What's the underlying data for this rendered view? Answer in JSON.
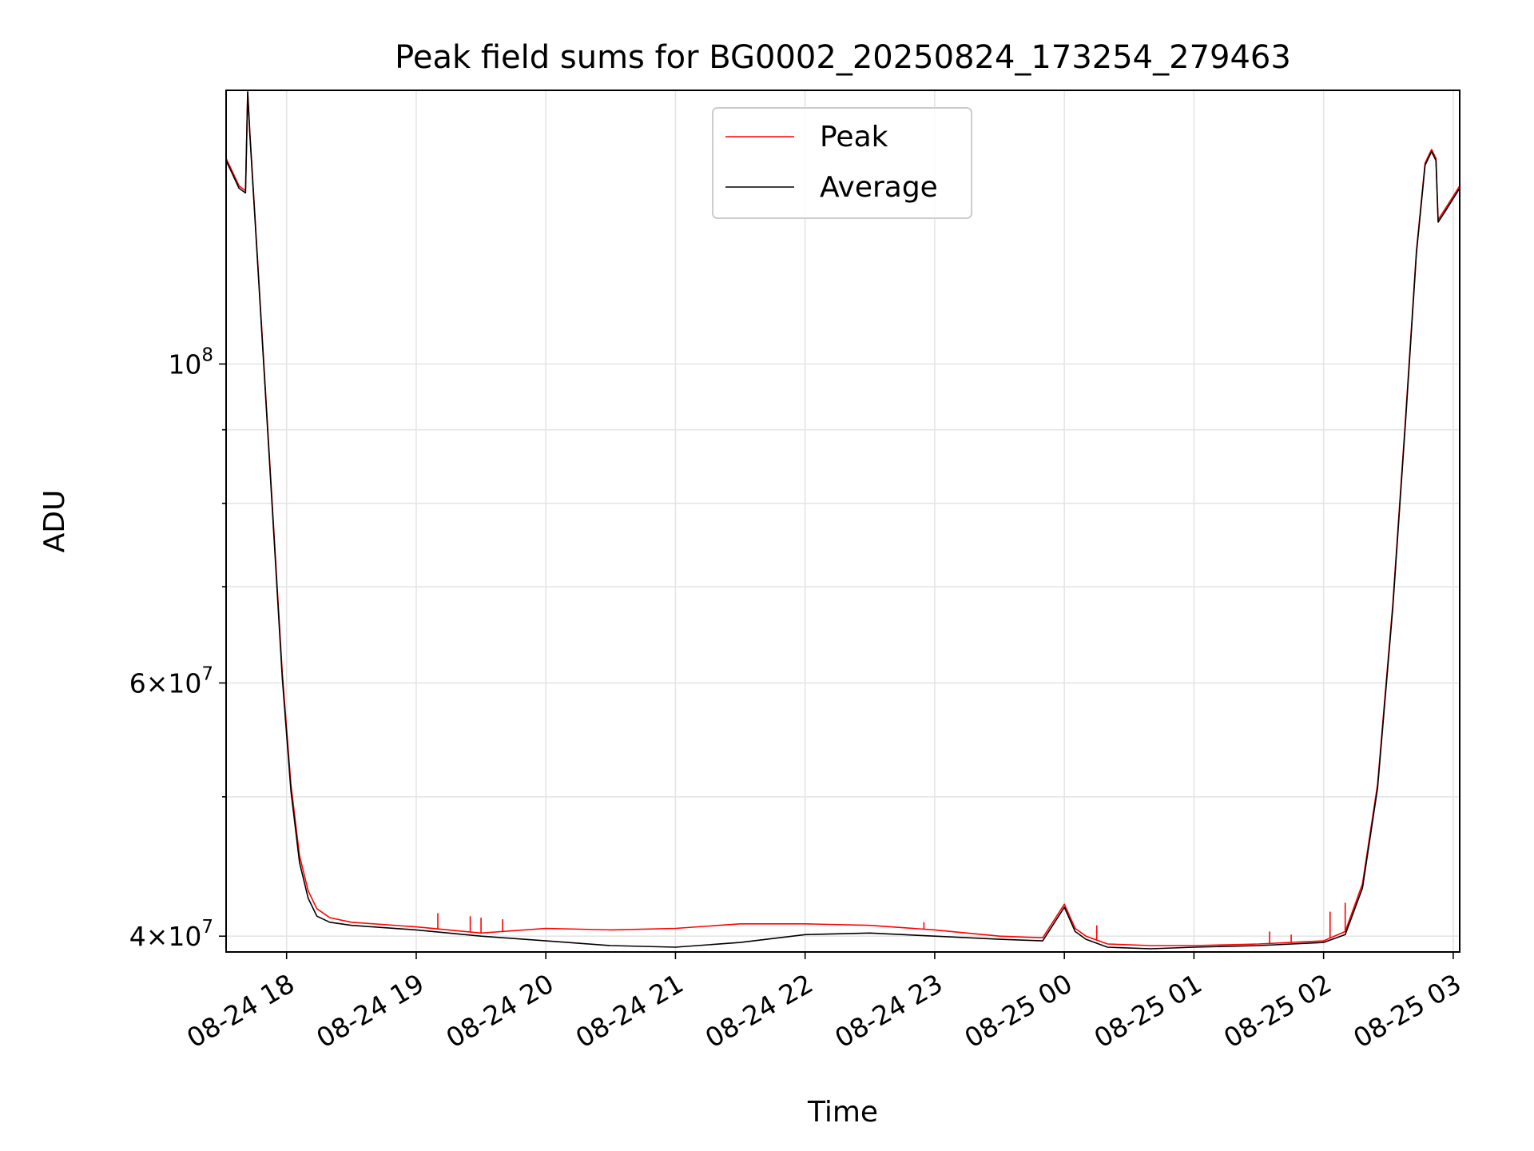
{
  "chart_data": {
    "type": "line",
    "title": "Peak field sums for BG0002_20250824_173254_279463",
    "xlabel": "Time",
    "ylabel": "ADU",
    "x_scale": "time",
    "y_scale": "log",
    "xlim": [
      "2025-08-24 17:32",
      "2025-08-25 03:03"
    ],
    "ylim": [
      39000000,
      155000000
    ],
    "grid": true,
    "legend_position": "top-center",
    "x_ticks": [
      "2025-08-24 18:00",
      "2025-08-24 19:00",
      "2025-08-24 20:00",
      "2025-08-24 21:00",
      "2025-08-24 22:00",
      "2025-08-24 23:00",
      "2025-08-25 00:00",
      "2025-08-25 01:00",
      "2025-08-25 02:00",
      "2025-08-25 03:00"
    ],
    "x_tick_labels": [
      "08-24 18",
      "08-24 19",
      "08-24 20",
      "08-24 21",
      "08-24 22",
      "08-24 23",
      "08-25 00",
      "08-25 01",
      "08-25 02",
      "08-25 03"
    ],
    "y_ticks": [
      40000000,
      60000000,
      100000000
    ],
    "y_tick_labels": [
      {
        "base": "4",
        "exp": "7",
        "mantissa": true
      },
      {
        "base": "6",
        "exp": "7",
        "mantissa": true
      },
      {
        "base": "10",
        "exp": "8",
        "mantissa": false
      }
    ],
    "series": [
      {
        "name": "Peak",
        "color": "#ff0000",
        "x": [
          "2025-08-24 17:32",
          "2025-08-24 17:35",
          "2025-08-24 17:38",
          "2025-08-24 17:41",
          "2025-08-24 17:42",
          "2025-08-24 17:43",
          "2025-08-24 17:46",
          "2025-08-24 17:50",
          "2025-08-24 17:54",
          "2025-08-24 17:58",
          "2025-08-24 18:02",
          "2025-08-24 18:06",
          "2025-08-24 18:10",
          "2025-08-24 18:14",
          "2025-08-24 18:20",
          "2025-08-24 18:30",
          "2025-08-24 19:00",
          "2025-08-24 19:30",
          "2025-08-24 20:00",
          "2025-08-24 20:30",
          "2025-08-24 21:00",
          "2025-08-24 21:30",
          "2025-08-24 22:00",
          "2025-08-24 22:30",
          "2025-08-24 23:00",
          "2025-08-24 23:30",
          "2025-08-24 23:50",
          "2025-08-25 00:00",
          "2025-08-25 00:05",
          "2025-08-25 00:10",
          "2025-08-25 00:20",
          "2025-08-25 00:40",
          "2025-08-25 01:00",
          "2025-08-25 01:30",
          "2025-08-25 02:00",
          "2025-08-25 02:10",
          "2025-08-25 02:18",
          "2025-08-25 02:25",
          "2025-08-25 02:32",
          "2025-08-25 02:38",
          "2025-08-25 02:43",
          "2025-08-25 02:47",
          "2025-08-25 02:50",
          "2025-08-25 02:52",
          "2025-08-25 02:53",
          "2025-08-25 02:56",
          "2025-08-25 03:03"
        ],
        "y": [
          139000000,
          136000000,
          133000000,
          132000000,
          155000000,
          145000000,
          122000000,
          97000000,
          77000000,
          61000000,
          51000000,
          45500000,
          43000000,
          41800000,
          41200000,
          40900000,
          40600000,
          40200000,
          40500000,
          40400000,
          40500000,
          40800000,
          40800000,
          40700000,
          40400000,
          40000000,
          39900000,
          42100000,
          40500000,
          40000000,
          39500000,
          39400000,
          39400000,
          39500000,
          39700000,
          40300000,
          43500000,
          51000000,
          68000000,
          92000000,
          120000000,
          138000000,
          141000000,
          139000000,
          126000000,
          128000000,
          133000000
        ],
        "spikes": [
          {
            "x": "2025-08-24 19:10",
            "y": 41500000
          },
          {
            "x": "2025-08-24 19:25",
            "y": 41300000
          },
          {
            "x": "2025-08-24 19:30",
            "y": 41200000
          },
          {
            "x": "2025-08-24 19:40",
            "y": 41100000
          },
          {
            "x": "2025-08-24 22:55",
            "y": 40900000
          },
          {
            "x": "2025-08-25 00:15",
            "y": 40700000
          },
          {
            "x": "2025-08-25 01:35",
            "y": 40300000
          },
          {
            "x": "2025-08-25 01:45",
            "y": 40100000
          },
          {
            "x": "2025-08-25 02:03",
            "y": 41600000
          },
          {
            "x": "2025-08-25 02:10",
            "y": 42200000
          }
        ]
      },
      {
        "name": "Average",
        "color": "#000000",
        "x": [
          "2025-08-24 17:32",
          "2025-08-24 17:35",
          "2025-08-24 17:38",
          "2025-08-24 17:41",
          "2025-08-24 17:42",
          "2025-08-24 17:43",
          "2025-08-24 17:46",
          "2025-08-24 17:50",
          "2025-08-24 17:54",
          "2025-08-24 17:58",
          "2025-08-24 18:02",
          "2025-08-24 18:06",
          "2025-08-24 18:10",
          "2025-08-24 18:14",
          "2025-08-24 18:20",
          "2025-08-24 18:30",
          "2025-08-24 19:00",
          "2025-08-24 19:30",
          "2025-08-24 20:00",
          "2025-08-24 20:30",
          "2025-08-24 21:00",
          "2025-08-24 21:30",
          "2025-08-24 22:00",
          "2025-08-24 22:30",
          "2025-08-24 23:00",
          "2025-08-24 23:30",
          "2025-08-24 23:50",
          "2025-08-25 00:00",
          "2025-08-25 00:05",
          "2025-08-25 00:10",
          "2025-08-25 00:20",
          "2025-08-25 00:40",
          "2025-08-25 01:00",
          "2025-08-25 01:30",
          "2025-08-25 02:00",
          "2025-08-25 02:10",
          "2025-08-25 02:18",
          "2025-08-25 02:25",
          "2025-08-25 02:32",
          "2025-08-25 02:38",
          "2025-08-25 02:43",
          "2025-08-25 02:47",
          "2025-08-25 02:50",
          "2025-08-25 02:52",
          "2025-08-25 02:53",
          "2025-08-25 02:56",
          "2025-08-25 03:03"
        ],
        "y": [
          138500000,
          135500000,
          132500000,
          131500000,
          154500000,
          144500000,
          121500000,
          96500000,
          76500000,
          60500000,
          50500000,
          45000000,
          42500000,
          41300000,
          40900000,
          40700000,
          40400000,
          40000000,
          39700000,
          39400000,
          39300000,
          39600000,
          40100000,
          40200000,
          40000000,
          39800000,
          39700000,
          41900000,
          40300000,
          39800000,
          39300000,
          39200000,
          39300000,
          39400000,
          39600000,
          40100000,
          43200000,
          50700000,
          67600000,
          91500000,
          119500000,
          137500000,
          140500000,
          138500000,
          125500000,
          127500000,
          132500000
        ]
      }
    ]
  }
}
